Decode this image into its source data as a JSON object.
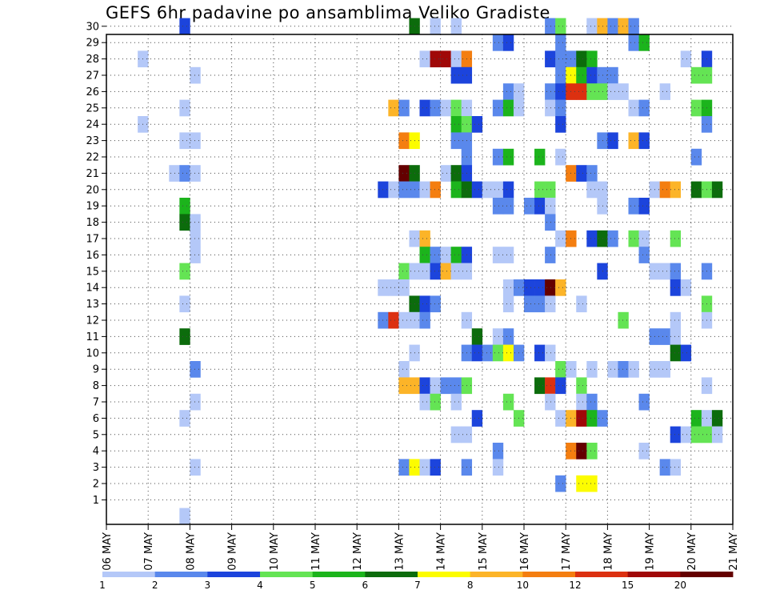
{
  "chart_data": {
    "type": "heatmap",
    "title": "GEFS 6hr padavine po ansamblima Veliko Gradiste",
    "xlabel": "",
    "ylabel": "",
    "x_ticks": [
      "06 MAY",
      "07 MAY",
      "08 MAY",
      "09 MAY",
      "10 MAY",
      "11 MAY",
      "12 MAY",
      "13 MAY",
      "14 MAY",
      "15 MAY",
      "16 MAY",
      "17 MAY",
      "18 MAY",
      "19 MAY",
      "20 MAY",
      "21 MAY"
    ],
    "y_ticks": [
      "1",
      "2",
      "3",
      "4",
      "5",
      "6",
      "7",
      "8",
      "9",
      "10",
      "11",
      "12",
      "13",
      "14",
      "15",
      "16",
      "17",
      "18",
      "19",
      "20",
      "21",
      "22",
      "23",
      "24",
      "25",
      "26",
      "27",
      "28",
      "29",
      "30"
    ],
    "x_range": [
      0,
      15
    ],
    "steps_per_day": 4,
    "y_range": [
      0,
      30
    ],
    "grid": "dotted",
    "legend": {
      "placement": "bottom",
      "labels": [
        "1",
        "2",
        "3",
        "4",
        "5",
        "6",
        "7",
        "8",
        "10",
        "12",
        "15",
        "20"
      ],
      "colors": [
        "#b4c8f8",
        "#5a88ec",
        "#1c44dc",
        "#64e454",
        "#1cb41c",
        "#0c6c0c",
        "#fcfc00",
        "#fcb428",
        "#f47e10",
        "#dc3010",
        "#a00808",
        "#640000"
      ]
    },
    "cells_note": "each cell: [day_offset_from_06_MAY_in_days, ensemble_member, color_class_index]",
    "cells": [
      [
        1.75,
        30,
        2
      ],
      [
        7.25,
        30,
        5
      ],
      [
        7.75,
        30,
        0
      ],
      [
        8.25,
        30,
        0
      ],
      [
        10.5,
        30,
        1
      ],
      [
        10.75,
        30,
        3
      ],
      [
        11.5,
        30,
        0
      ],
      [
        11.75,
        30,
        7
      ],
      [
        12.0,
        30,
        1
      ],
      [
        12.25,
        30,
        7
      ],
      [
        12.5,
        30,
        1
      ],
      [
        9.25,
        29,
        1
      ],
      [
        9.5,
        29,
        2
      ],
      [
        10.75,
        29,
        1
      ],
      [
        12.5,
        29,
        1
      ],
      [
        12.75,
        29,
        4
      ],
      [
        0.75,
        28,
        0
      ],
      [
        7.5,
        28,
        0
      ],
      [
        7.75,
        28,
        10
      ],
      [
        8.0,
        28,
        10
      ],
      [
        8.25,
        28,
        0
      ],
      [
        8.5,
        28,
        8
      ],
      [
        10.5,
        28,
        2
      ],
      [
        10.75,
        28,
        1
      ],
      [
        11.0,
        28,
        1
      ],
      [
        11.25,
        28,
        5
      ],
      [
        11.5,
        28,
        4
      ],
      [
        13.75,
        28,
        0
      ],
      [
        14.25,
        28,
        2
      ],
      [
        2.0,
        27,
        0
      ],
      [
        8.25,
        27,
        2
      ],
      [
        8.5,
        27,
        2
      ],
      [
        10.75,
        27,
        1
      ],
      [
        11.0,
        27,
        6
      ],
      [
        11.25,
        27,
        4
      ],
      [
        11.5,
        27,
        2
      ],
      [
        11.75,
        27,
        1
      ],
      [
        12.0,
        27,
        1
      ],
      [
        14.0,
        27,
        3
      ],
      [
        14.25,
        27,
        3
      ],
      [
        9.5,
        26,
        1
      ],
      [
        9.75,
        26,
        0
      ],
      [
        10.5,
        26,
        1
      ],
      [
        10.75,
        26,
        2
      ],
      [
        11.0,
        26,
        9
      ],
      [
        11.25,
        26,
        9
      ],
      [
        11.5,
        26,
        3
      ],
      [
        11.75,
        26,
        3
      ],
      [
        12.0,
        26,
        0
      ],
      [
        12.25,
        26,
        0
      ],
      [
        13.25,
        26,
        0
      ],
      [
        1.75,
        25,
        0
      ],
      [
        6.75,
        25,
        7
      ],
      [
        7.0,
        25,
        1
      ],
      [
        7.5,
        25,
        2
      ],
      [
        7.75,
        25,
        1
      ],
      [
        8.0,
        25,
        0
      ],
      [
        8.25,
        25,
        3
      ],
      [
        8.5,
        25,
        0
      ],
      [
        9.25,
        25,
        1
      ],
      [
        9.5,
        25,
        4
      ],
      [
        9.75,
        25,
        0
      ],
      [
        10.5,
        25,
        0
      ],
      [
        10.75,
        25,
        1
      ],
      [
        12.5,
        25,
        0
      ],
      [
        12.75,
        25,
        1
      ],
      [
        14.0,
        25,
        3
      ],
      [
        14.25,
        25,
        4
      ],
      [
        0.75,
        24,
        0
      ],
      [
        8.25,
        24,
        4
      ],
      [
        8.5,
        24,
        3
      ],
      [
        8.75,
        24,
        2
      ],
      [
        10.75,
        24,
        2
      ],
      [
        14.25,
        24,
        1
      ],
      [
        1.75,
        23,
        0
      ],
      [
        2.0,
        23,
        0
      ],
      [
        7.0,
        23,
        8
      ],
      [
        7.25,
        23,
        6
      ],
      [
        8.25,
        23,
        1
      ],
      [
        8.5,
        23,
        1
      ],
      [
        11.75,
        23,
        1
      ],
      [
        12.0,
        23,
        2
      ],
      [
        12.5,
        23,
        7
      ],
      [
        12.75,
        23,
        2
      ],
      [
        8.5,
        22,
        1
      ],
      [
        9.25,
        22,
        1
      ],
      [
        9.5,
        22,
        4
      ],
      [
        10.25,
        22,
        4
      ],
      [
        10.75,
        22,
        0
      ],
      [
        14.0,
        22,
        1
      ],
      [
        1.5,
        21,
        0
      ],
      [
        1.75,
        21,
        1
      ],
      [
        2.0,
        21,
        0
      ],
      [
        7.0,
        21,
        11
      ],
      [
        7.25,
        21,
        5
      ],
      [
        8.0,
        21,
        0
      ],
      [
        8.25,
        21,
        5
      ],
      [
        8.5,
        21,
        2
      ],
      [
        11.0,
        21,
        8
      ],
      [
        11.25,
        21,
        2
      ],
      [
        11.5,
        21,
        1
      ],
      [
        6.5,
        20,
        2
      ],
      [
        6.75,
        20,
        0
      ],
      [
        7.0,
        20,
        1
      ],
      [
        7.25,
        20,
        1
      ],
      [
        7.5,
        20,
        0
      ],
      [
        7.75,
        20,
        8
      ],
      [
        8.25,
        20,
        4
      ],
      [
        8.5,
        20,
        5
      ],
      [
        8.75,
        20,
        2
      ],
      [
        9.0,
        20,
        0
      ],
      [
        9.25,
        20,
        0
      ],
      [
        9.5,
        20,
        2
      ],
      [
        10.25,
        20,
        3
      ],
      [
        10.5,
        20,
        3
      ],
      [
        11.5,
        20,
        0
      ],
      [
        11.75,
        20,
        0
      ],
      [
        13.0,
        20,
        0
      ],
      [
        13.25,
        20,
        8
      ],
      [
        13.5,
        20,
        7
      ],
      [
        14.0,
        20,
        5
      ],
      [
        14.25,
        20,
        3
      ],
      [
        14.5,
        20,
        5
      ],
      [
        1.75,
        19,
        4
      ],
      [
        9.25,
        19,
        1
      ],
      [
        9.5,
        19,
        1
      ],
      [
        10.0,
        19,
        1
      ],
      [
        10.25,
        19,
        2
      ],
      [
        10.5,
        19,
        0
      ],
      [
        11.75,
        19,
        0
      ],
      [
        12.5,
        19,
        1
      ],
      [
        12.75,
        19,
        2
      ],
      [
        1.75,
        18,
        5
      ],
      [
        2.0,
        18,
        0
      ],
      [
        10.5,
        18,
        1
      ],
      [
        2.0,
        17,
        0
      ],
      [
        7.25,
        17,
        0
      ],
      [
        7.5,
        17,
        7
      ],
      [
        10.75,
        17,
        0
      ],
      [
        11.0,
        17,
        8
      ],
      [
        11.5,
        17,
        2
      ],
      [
        11.75,
        17,
        5
      ],
      [
        12.0,
        17,
        1
      ],
      [
        12.5,
        17,
        3
      ],
      [
        12.75,
        17,
        0
      ],
      [
        13.5,
        17,
        3
      ],
      [
        2.0,
        16,
        0
      ],
      [
        7.5,
        16,
        4
      ],
      [
        7.75,
        16,
        1
      ],
      [
        8.0,
        16,
        0
      ],
      [
        8.25,
        16,
        4
      ],
      [
        8.5,
        16,
        2
      ],
      [
        9.25,
        16,
        0
      ],
      [
        9.5,
        16,
        0
      ],
      [
        10.5,
        16,
        1
      ],
      [
        12.75,
        16,
        1
      ],
      [
        1.75,
        15,
        3
      ],
      [
        7.0,
        15,
        3
      ],
      [
        7.25,
        15,
        0
      ],
      [
        7.5,
        15,
        0
      ],
      [
        7.75,
        15,
        2
      ],
      [
        8.0,
        15,
        7
      ],
      [
        8.25,
        15,
        0
      ],
      [
        8.5,
        15,
        0
      ],
      [
        11.75,
        15,
        2
      ],
      [
        13.0,
        15,
        0
      ],
      [
        13.25,
        15,
        0
      ],
      [
        13.5,
        15,
        1
      ],
      [
        14.25,
        15,
        1
      ],
      [
        6.5,
        14,
        0
      ],
      [
        6.75,
        14,
        0
      ],
      [
        7.0,
        14,
        0
      ],
      [
        9.5,
        14,
        0
      ],
      [
        9.75,
        14,
        1
      ],
      [
        10.0,
        14,
        2
      ],
      [
        10.25,
        14,
        2
      ],
      [
        10.5,
        14,
        11
      ],
      [
        10.75,
        14,
        7
      ],
      [
        13.5,
        14,
        2
      ],
      [
        13.75,
        14,
        0
      ],
      [
        1.75,
        13,
        0
      ],
      [
        7.25,
        13,
        5
      ],
      [
        7.5,
        13,
        2
      ],
      [
        7.75,
        13,
        1
      ],
      [
        9.5,
        13,
        0
      ],
      [
        10.0,
        13,
        1
      ],
      [
        10.25,
        13,
        1
      ],
      [
        10.5,
        13,
        0
      ],
      [
        11.25,
        13,
        0
      ],
      [
        14.25,
        13,
        3
      ],
      [
        6.5,
        12,
        1
      ],
      [
        6.75,
        12,
        9
      ],
      [
        7.0,
        12,
        0
      ],
      [
        7.25,
        12,
        0
      ],
      [
        7.5,
        12,
        1
      ],
      [
        8.5,
        12,
        0
      ],
      [
        12.25,
        12,
        3
      ],
      [
        13.5,
        12,
        0
      ],
      [
        14.25,
        12,
        0
      ],
      [
        1.75,
        11,
        5
      ],
      [
        8.75,
        11,
        5
      ],
      [
        9.25,
        11,
        0
      ],
      [
        9.5,
        11,
        1
      ],
      [
        13.0,
        11,
        1
      ],
      [
        13.25,
        11,
        1
      ],
      [
        13.5,
        11,
        0
      ],
      [
        7.25,
        10,
        0
      ],
      [
        8.5,
        10,
        1
      ],
      [
        8.75,
        10,
        2
      ],
      [
        9.0,
        10,
        1
      ],
      [
        9.25,
        10,
        3
      ],
      [
        9.5,
        10,
        6
      ],
      [
        9.75,
        10,
        1
      ],
      [
        10.25,
        10,
        2
      ],
      [
        10.5,
        10,
        0
      ],
      [
        13.5,
        10,
        5
      ],
      [
        13.75,
        10,
        2
      ],
      [
        2.0,
        9,
        1
      ],
      [
        7.0,
        9,
        0
      ],
      [
        10.75,
        9,
        3
      ],
      [
        11.0,
        9,
        0
      ],
      [
        11.5,
        9,
        0
      ],
      [
        12.0,
        9,
        0
      ],
      [
        12.25,
        9,
        1
      ],
      [
        12.5,
        9,
        0
      ],
      [
        13.0,
        9,
        0
      ],
      [
        13.25,
        9,
        0
      ],
      [
        7.0,
        8,
        7
      ],
      [
        7.25,
        8,
        7
      ],
      [
        7.5,
        8,
        2
      ],
      [
        7.75,
        8,
        0
      ],
      [
        8.0,
        8,
        1
      ],
      [
        8.25,
        8,
        1
      ],
      [
        8.5,
        8,
        3
      ],
      [
        10.25,
        8,
        5
      ],
      [
        10.5,
        8,
        9
      ],
      [
        10.75,
        8,
        2
      ],
      [
        11.25,
        8,
        3
      ],
      [
        14.25,
        8,
        0
      ],
      [
        2.0,
        7,
        0
      ],
      [
        7.5,
        7,
        0
      ],
      [
        7.75,
        7,
        3
      ],
      [
        8.25,
        7,
        0
      ],
      [
        9.5,
        7,
        3
      ],
      [
        10.5,
        7,
        0
      ],
      [
        11.25,
        7,
        0
      ],
      [
        11.5,
        7,
        1
      ],
      [
        12.75,
        7,
        1
      ],
      [
        1.75,
        6,
        0
      ],
      [
        8.75,
        6,
        2
      ],
      [
        9.75,
        6,
        3
      ],
      [
        10.75,
        6,
        0
      ],
      [
        11.0,
        6,
        7
      ],
      [
        11.25,
        6,
        10
      ],
      [
        11.5,
        6,
        4
      ],
      [
        11.75,
        6,
        1
      ],
      [
        14.0,
        6,
        4
      ],
      [
        14.25,
        6,
        0
      ],
      [
        14.5,
        6,
        5
      ],
      [
        8.25,
        5,
        0
      ],
      [
        8.5,
        5,
        0
      ],
      [
        13.5,
        5,
        2
      ],
      [
        13.75,
        5,
        0
      ],
      [
        14.0,
        5,
        3
      ],
      [
        14.25,
        5,
        3
      ],
      [
        14.5,
        5,
        0
      ],
      [
        9.25,
        4,
        1
      ],
      [
        11.0,
        4,
        8
      ],
      [
        11.25,
        4,
        11
      ],
      [
        11.5,
        4,
        3
      ],
      [
        12.75,
        4,
        0
      ],
      [
        2.0,
        3,
        0
      ],
      [
        7.0,
        3,
        1
      ],
      [
        7.25,
        3,
        6
      ],
      [
        7.5,
        3,
        0
      ],
      [
        7.75,
        3,
        2
      ],
      [
        8.5,
        3,
        1
      ],
      [
        9.25,
        3,
        0
      ],
      [
        13.25,
        3,
        1
      ],
      [
        13.5,
        3,
        0
      ],
      [
        10.75,
        2,
        1
      ],
      [
        11.25,
        2,
        6
      ],
      [
        11.5,
        2,
        6
      ],
      [
        1.75,
        0,
        0
      ]
    ]
  }
}
